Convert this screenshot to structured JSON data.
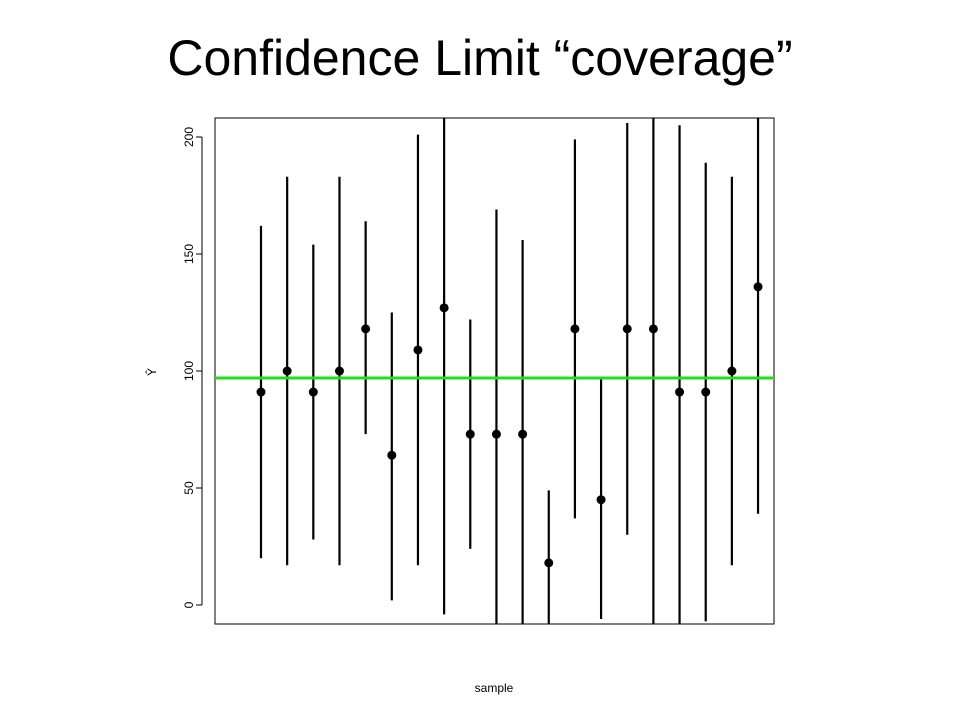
{
  "slide": {
    "title": "Confidence Limit “coverage”"
  },
  "chart_data": {
    "type": "scatter",
    "subtype": "error-bar",
    "xlabel": "sample",
    "ylabel": "Ŷ",
    "ylim": [
      -8,
      208
    ],
    "yticks": [
      0,
      50,
      100,
      150,
      200
    ],
    "yticks_orientation": "rotated-90",
    "grid": false,
    "legend": "none",
    "reference_line": {
      "value": 97,
      "color": "#22dd22"
    },
    "point_color": "#000000",
    "series": [
      {
        "points": [
          {
            "x": 1,
            "y": 91,
            "low": 20,
            "high": 162
          },
          {
            "x": 2,
            "y": 100,
            "low": 17,
            "high": 183
          },
          {
            "x": 3,
            "y": 91,
            "low": 28,
            "high": 154
          },
          {
            "x": 4,
            "y": 100,
            "low": 17,
            "high": 183
          },
          {
            "x": 5,
            "y": 118,
            "low": 73,
            "high": 164
          },
          {
            "x": 6,
            "y": 64,
            "low": 2,
            "high": 125
          },
          {
            "x": 7,
            "y": 109,
            "low": 17,
            "high": 201
          },
          {
            "x": 8,
            "y": 127,
            "low": -4,
            "high": 208
          },
          {
            "x": 9,
            "y": 73,
            "low": 24,
            "high": 122
          },
          {
            "x": 10,
            "y": 73,
            "low": -8,
            "high": 169
          },
          {
            "x": 11,
            "y": 73,
            "low": -8,
            "high": 156
          },
          {
            "x": 12,
            "y": 18,
            "low": -8,
            "high": 49
          },
          {
            "x": 13,
            "y": 118,
            "low": 37,
            "high": 199
          },
          {
            "x": 14,
            "y": 45,
            "low": -6,
            "high": 97
          },
          {
            "x": 15,
            "y": 118,
            "low": 30,
            "high": 206
          },
          {
            "x": 16,
            "y": 118,
            "low": -8,
            "high": 208
          },
          {
            "x": 17,
            "y": 91,
            "low": -8,
            "high": 205
          },
          {
            "x": 18,
            "y": 91,
            "low": -7,
            "high": 189
          },
          {
            "x": 19,
            "y": 100,
            "low": 17,
            "high": 183
          },
          {
            "x": 20,
            "y": 136,
            "low": 39,
            "high": 208
          }
        ]
      }
    ]
  }
}
